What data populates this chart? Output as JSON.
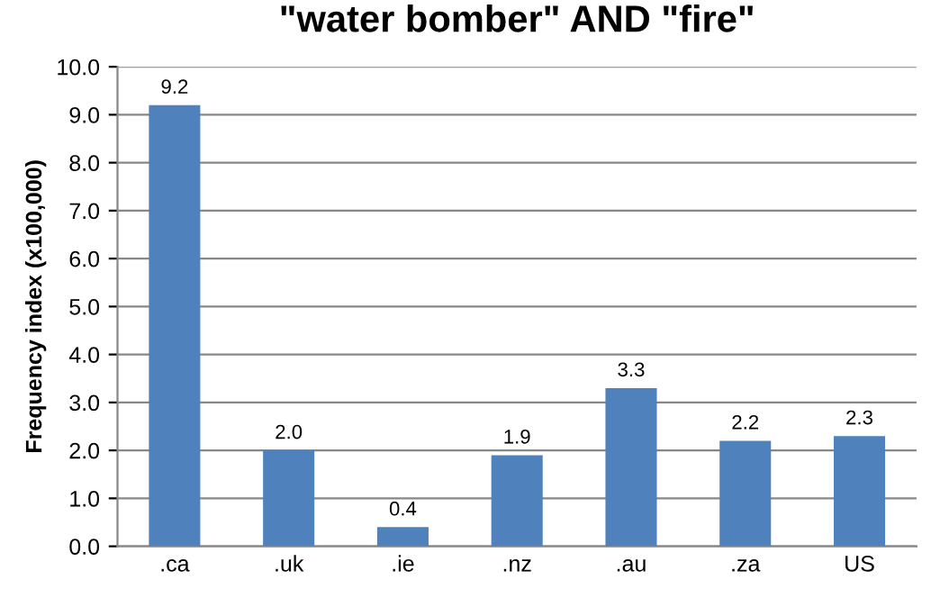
{
  "chart_data": {
    "type": "bar",
    "title": "\"water bomber\" AND \"fire\"",
    "ylabel": "Frequency index (x100,000)",
    "categories": [
      ".ca",
      ".uk",
      ".ie",
      ".nz",
      ".au",
      ".za",
      "US"
    ],
    "values": [
      9.2,
      2.0,
      0.4,
      1.9,
      3.3,
      2.2,
      2.3
    ],
    "value_labels": [
      "9.2",
      "2.0",
      "0.4",
      "1.9",
      "3.3",
      "2.2",
      "2.3"
    ],
    "color": "#4f81bd",
    "ylim": [
      0,
      10
    ],
    "yticks": [
      {
        "value": 0,
        "label": "0.0"
      },
      {
        "value": 1,
        "label": "1.0"
      },
      {
        "value": 2,
        "label": "2.0"
      },
      {
        "value": 3,
        "label": "3.0"
      },
      {
        "value": 4,
        "label": "4.0"
      },
      {
        "value": 5,
        "label": "5.0"
      },
      {
        "value": 6,
        "label": "6.0"
      },
      {
        "value": 7,
        "label": "7.0"
      },
      {
        "value": 8,
        "label": "8.0"
      },
      {
        "value": 9,
        "label": "9.0"
      },
      {
        "value": 10,
        "label": "10.0"
      }
    ],
    "grid": "y",
    "legend": false
  }
}
